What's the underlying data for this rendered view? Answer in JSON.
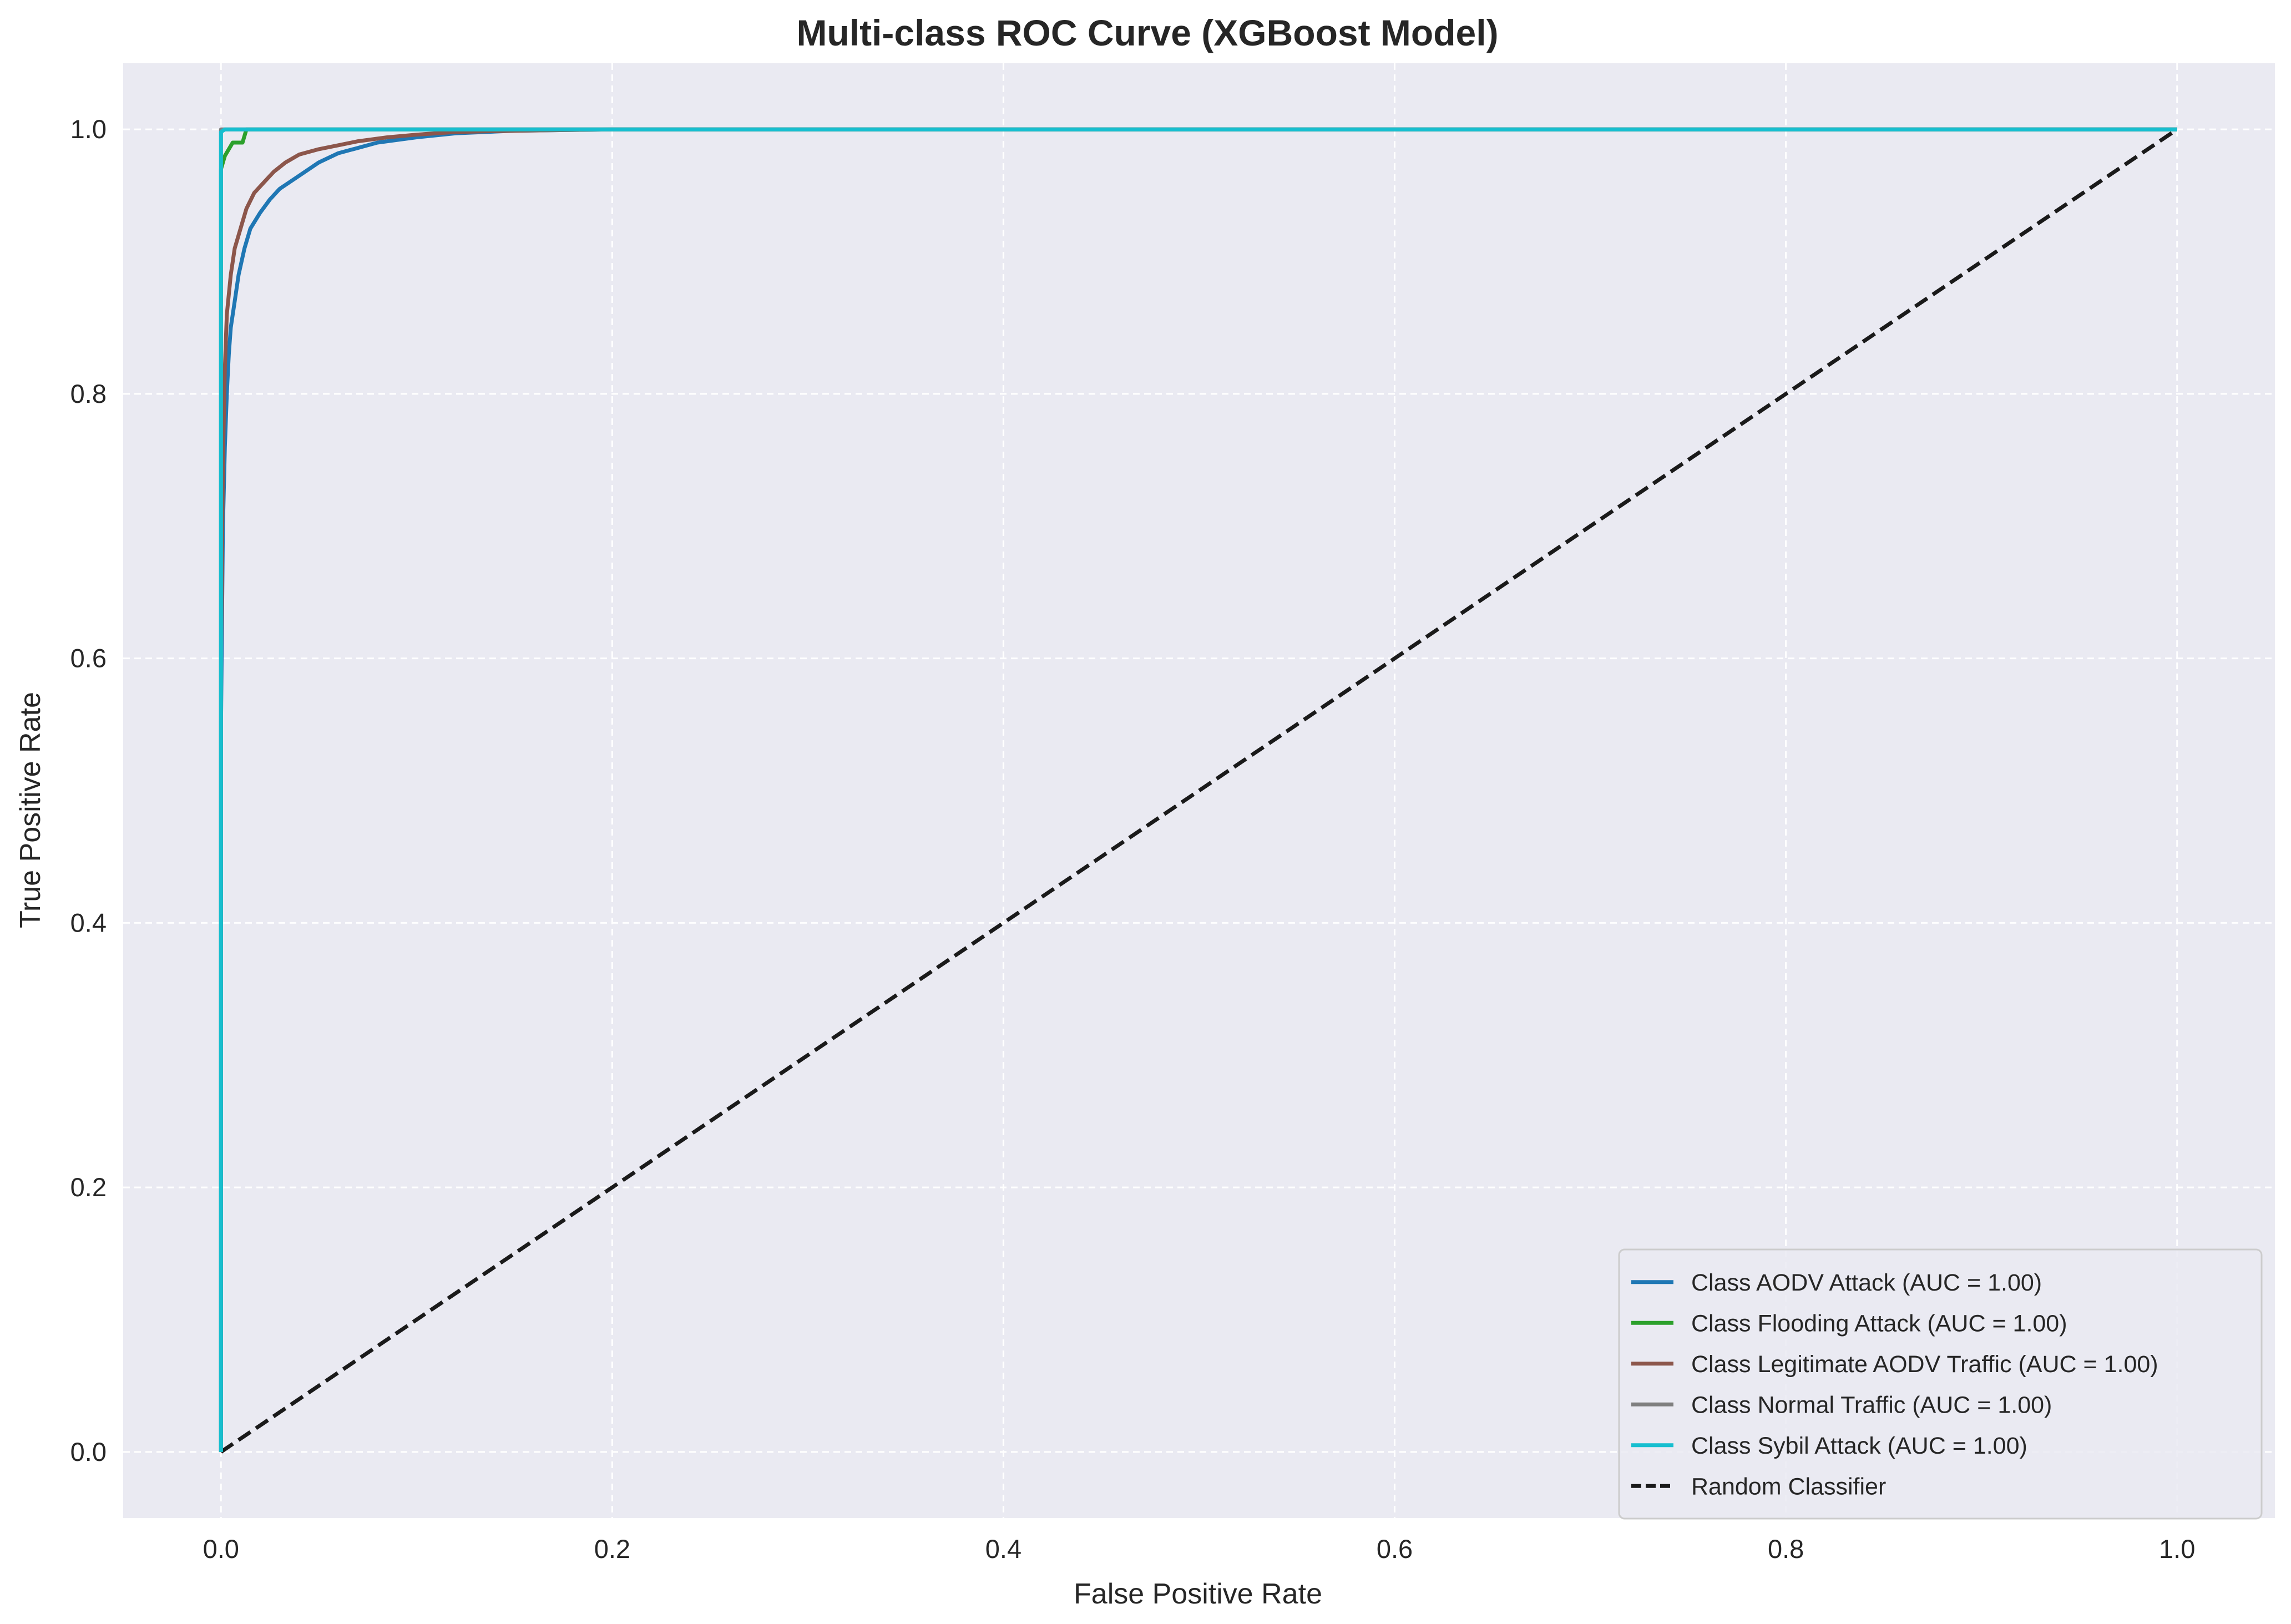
{
  "chart_data": {
    "type": "line",
    "title": "Multi-class ROC Curve (XGBoost Model)",
    "xlabel": "False Positive Rate",
    "ylabel": "True Positive Rate",
    "xlim": [
      -0.05,
      1.05
    ],
    "ylim": [
      -0.05,
      1.05
    ],
    "grid": true,
    "legend_position": "lower-right",
    "x_ticks": [
      0.0,
      0.2,
      0.4,
      0.6,
      0.8,
      1.0
    ],
    "y_ticks": [
      0.0,
      0.2,
      0.4,
      0.6,
      0.8,
      1.0
    ],
    "x_tick_labels": [
      "0.0",
      "0.2",
      "0.4",
      "0.6",
      "0.8",
      "1.0"
    ],
    "y_tick_labels": [
      "0.0",
      "0.2",
      "0.4",
      "0.6",
      "0.8",
      "1.0"
    ],
    "series": [
      {
        "name": "Class AODV Attack (AUC = 1.00)",
        "color": "#1f77b4",
        "dash": "solid",
        "x": [
          0,
          0,
          0.001,
          0.002,
          0.003,
          0.004,
          0.005,
          0.007,
          0.009,
          0.012,
          0.015,
          0.02,
          0.025,
          0.03,
          0.04,
          0.05,
          0.06,
          0.07,
          0.08,
          0.1,
          0.12,
          0.15,
          0.2,
          1.0
        ],
        "y": [
          0,
          0.55,
          0.7,
          0.76,
          0.8,
          0.83,
          0.85,
          0.87,
          0.89,
          0.91,
          0.925,
          0.937,
          0.947,
          0.955,
          0.965,
          0.975,
          0.982,
          0.986,
          0.99,
          0.994,
          0.997,
          0.999,
          1.0,
          1.0
        ]
      },
      {
        "name": "Class Flooding Attack (AUC = 1.00)",
        "color": "#2ca02c",
        "dash": "solid",
        "x": [
          0,
          0,
          0.001,
          0.002,
          0.004,
          0.006,
          0.008,
          0.011,
          0.012,
          0.013,
          1.0
        ],
        "y": [
          0,
          0.97,
          0.975,
          0.98,
          0.985,
          0.99,
          0.99,
          0.99,
          0.995,
          1.0,
          1.0
        ]
      },
      {
        "name": "Class Legitimate AODV Traffic (AUC = 1.00)",
        "color": "#8c564b",
        "dash": "solid",
        "x": [
          0,
          0,
          0.001,
          0.002,
          0.003,
          0.005,
          0.007,
          0.01,
          0.013,
          0.017,
          0.022,
          0.027,
          0.033,
          0.04,
          0.05,
          0.06,
          0.07,
          0.085,
          0.1,
          0.12,
          0.15,
          0.2,
          1.0
        ],
        "y": [
          0,
          0.6,
          0.75,
          0.82,
          0.86,
          0.89,
          0.91,
          0.925,
          0.94,
          0.952,
          0.96,
          0.968,
          0.975,
          0.981,
          0.985,
          0.988,
          0.991,
          0.994,
          0.996,
          0.998,
          0.999,
          1.0,
          1.0
        ]
      },
      {
        "name": "Class Normal Traffic (AUC = 1.00)",
        "color": "#7f7f7f",
        "dash": "solid",
        "x": [
          0,
          0,
          1.0
        ],
        "y": [
          0,
          1.0,
          1.0
        ]
      },
      {
        "name": "Class Sybil Attack (AUC = 1.00)",
        "color": "#17becf",
        "dash": "solid",
        "x": [
          0,
          0,
          0.002,
          1.0
        ],
        "y": [
          0,
          0.998,
          1.0,
          1.0
        ]
      },
      {
        "name": "Random Classifier",
        "color": "#1a1a1a",
        "dash": "dashed",
        "x": [
          0,
          1
        ],
        "y": [
          0,
          1
        ]
      }
    ]
  }
}
